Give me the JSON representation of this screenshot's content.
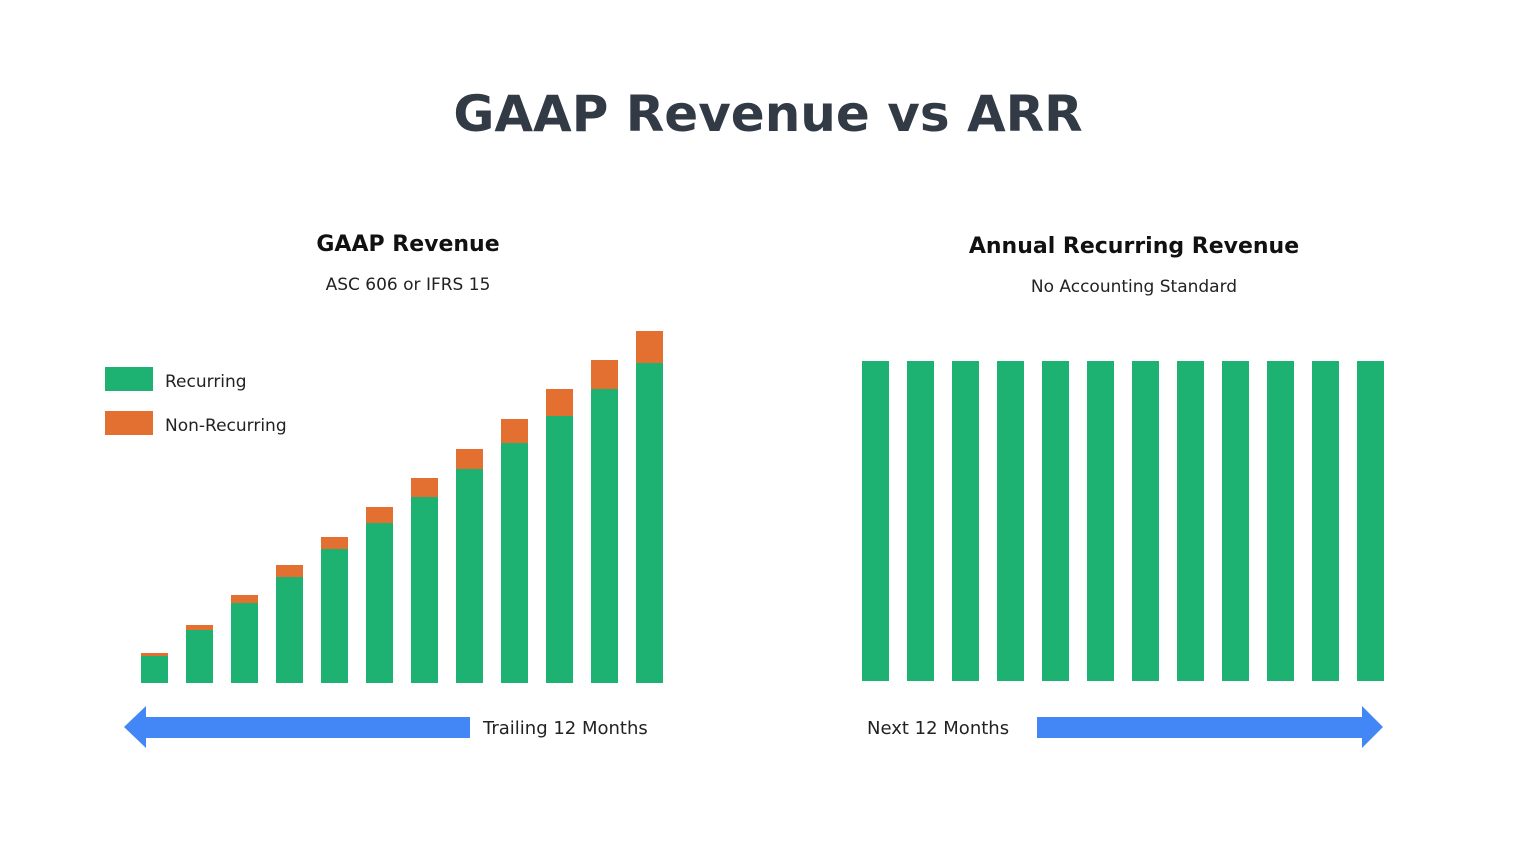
{
  "title": "GAAP Revenue vs ARR",
  "colors": {
    "recurring": "#1db272",
    "non_recurring": "#e36f31",
    "arrow": "#4287f5",
    "title": "#323a45"
  },
  "chart_data": [
    {
      "type": "bar",
      "stacked": true,
      "title": "GAAP Revenue",
      "subtitle": "ASC 606 or IFRS 15",
      "legend": [
        "Recurring",
        "Non-Recurring"
      ],
      "legend_position": "top-left",
      "axes_shown": false,
      "grid": false,
      "series": [
        {
          "name": "Recurring",
          "values": [
            27,
            53,
            80,
            106,
            134,
            160,
            186,
            214,
            240,
            267,
            294,
            320
          ]
        },
        {
          "name": "Non-Recurring",
          "values": [
            3,
            5,
            8,
            12,
            12,
            16,
            19,
            20,
            24,
            27,
            29,
            32
          ]
        }
      ],
      "arrow_label": "Trailing 12 Months",
      "arrow_direction": "left"
    },
    {
      "type": "bar",
      "title": "Annual Recurring Revenue",
      "subtitle": "No Accounting Standard",
      "axes_shown": false,
      "grid": false,
      "values": [
        320,
        320,
        320,
        320,
        320,
        320,
        320,
        320,
        320,
        320,
        320,
        320
      ],
      "arrow_label": "Next 12 Months",
      "arrow_direction": "right"
    }
  ]
}
